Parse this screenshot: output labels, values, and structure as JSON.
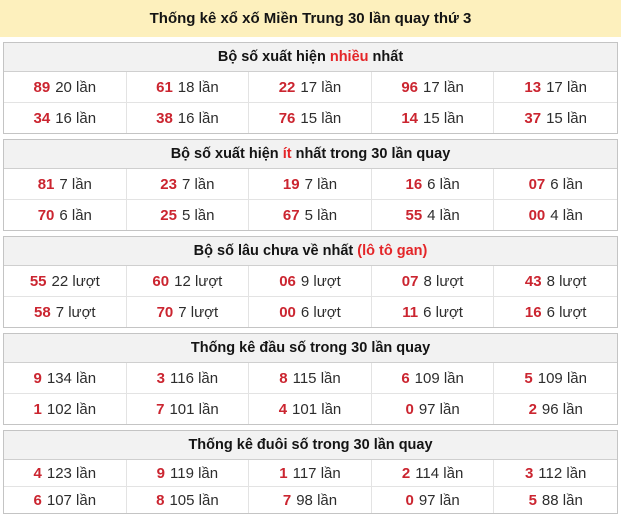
{
  "title": "Thống kê xổ xố Miền Trung 30 lần quay thứ 3",
  "colors": {
    "title_bg": "#fdf0bd",
    "header_bg": "#f2f2f2",
    "highlight_red": "#e42528",
    "number_red": "#cb2530"
  },
  "sections": [
    {
      "id": "most-frequent",
      "header": {
        "pre": "Bộ số xuất hiện ",
        "highlight": "nhiều",
        "post": " nhất"
      },
      "unit": "lần",
      "rows": [
        [
          {
            "num": "89",
            "label": "20 lần"
          },
          {
            "num": "61",
            "label": "18 lần"
          },
          {
            "num": "22",
            "label": "17 lần"
          },
          {
            "num": "96",
            "label": "17 lần"
          },
          {
            "num": "13",
            "label": "17 lần"
          }
        ],
        [
          {
            "num": "34",
            "label": "16 lần"
          },
          {
            "num": "38",
            "label": "16 lần"
          },
          {
            "num": "76",
            "label": "15 lần"
          },
          {
            "num": "14",
            "label": "15 lần"
          },
          {
            "num": "37",
            "label": "15 lần"
          }
        ]
      ]
    },
    {
      "id": "least-frequent",
      "header": {
        "pre": "Bộ số xuất hiện ",
        "highlight": "ít",
        "post": " nhất trong 30 lần quay"
      },
      "unit": "lần",
      "rows": [
        [
          {
            "num": "81",
            "label": "7 lần"
          },
          {
            "num": "23",
            "label": "7 lần"
          },
          {
            "num": "19",
            "label": "7 lần"
          },
          {
            "num": "16",
            "label": "6 lần"
          },
          {
            "num": "07",
            "label": "6 lần"
          }
        ],
        [
          {
            "num": "70",
            "label": "6 lần"
          },
          {
            "num": "25",
            "label": "5 lần"
          },
          {
            "num": "67",
            "label": "5 lần"
          },
          {
            "num": "55",
            "label": "4 lần"
          },
          {
            "num": "00",
            "label": "4 lần"
          }
        ]
      ]
    },
    {
      "id": "longest-absent",
      "header": {
        "pre": "Bộ số lâu chưa về nhất ",
        "highlight": "(lô tô gan)",
        "post": ""
      },
      "unit": "lượt",
      "rows": [
        [
          {
            "num": "55",
            "label": "22 lượt"
          },
          {
            "num": "60",
            "label": "12 lượt"
          },
          {
            "num": "06",
            "label": "9 lượt"
          },
          {
            "num": "07",
            "label": "8 lượt"
          },
          {
            "num": "43",
            "label": "8 lượt"
          }
        ],
        [
          {
            "num": "58",
            "label": "7 lượt"
          },
          {
            "num": "70",
            "label": "7 lượt"
          },
          {
            "num": "00",
            "label": "6 lượt"
          },
          {
            "num": "11",
            "label": "6 lượt"
          },
          {
            "num": "16",
            "label": "6 lượt"
          }
        ]
      ]
    },
    {
      "id": "head-digits",
      "header": {
        "pre": "Thống kê đầu số trong 30 lần quay",
        "highlight": "",
        "post": ""
      },
      "unit": "lần",
      "rows": [
        [
          {
            "num": "9",
            "label": "134 lần"
          },
          {
            "num": "3",
            "label": "116 lần"
          },
          {
            "num": "8",
            "label": "115 lần"
          },
          {
            "num": "6",
            "label": "109 lần"
          },
          {
            "num": "5",
            "label": "109 lần"
          }
        ],
        [
          {
            "num": "1",
            "label": "102 lần"
          },
          {
            "num": "7",
            "label": "101 lần"
          },
          {
            "num": "4",
            "label": "101 lần"
          },
          {
            "num": "0",
            "label": "97 lần"
          },
          {
            "num": "2",
            "label": "96 lần"
          }
        ]
      ]
    },
    {
      "id": "tail-digits",
      "header": {
        "pre": "Thống kê đuôi số trong 30 lần quay",
        "highlight": "",
        "post": ""
      },
      "unit": "lần",
      "rows": [
        [
          {
            "num": "4",
            "label": "123 lần"
          },
          {
            "num": "9",
            "label": "119 lần"
          },
          {
            "num": "1",
            "label": "117 lần"
          },
          {
            "num": "2",
            "label": "114 lần"
          },
          {
            "num": "3",
            "label": "112 lần"
          }
        ],
        [
          {
            "num": "6",
            "label": "107 lần"
          },
          {
            "num": "8",
            "label": "105 lần"
          },
          {
            "num": "7",
            "label": "98 lần"
          },
          {
            "num": "0",
            "label": "97 lần"
          },
          {
            "num": "5",
            "label": "88 lần"
          }
        ]
      ]
    }
  ]
}
